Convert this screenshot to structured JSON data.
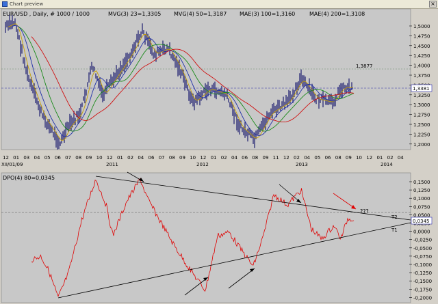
{
  "window": {
    "title": "Chart preview",
    "close_label": "×"
  },
  "price_chart": {
    "symbol": "EUR/USD",
    "timeframe": "Daily",
    "scale_info": "# 1000 / 1000",
    "indicators": [
      {
        "text": "MVG(3) 23=1,3305",
        "color": "#c8a000"
      },
      {
        "text": "MVG(4) 50=1,3187",
        "color": "#1e2ea8"
      },
      {
        "text": "MAE(3) 100=1,3160",
        "color": "#1a8a1a"
      },
      {
        "text": "MAE(4) 200=1,3108",
        "color": "#d01010"
      }
    ],
    "level_label": "1,3877",
    "current_price": "1,3381",
    "y_ticks": [
      "1,5000",
      "1,4750",
      "1,4500",
      "1,4250",
      "1,4000",
      "1,3750",
      "1,3500",
      "1,3250",
      "1,3000",
      "1,2750",
      "1,2500",
      "1,2250",
      "1,2000"
    ],
    "x_ticks": [
      "12",
      "01",
      "03",
      "04",
      "05",
      "06",
      "07",
      "08",
      "09",
      "10",
      "12",
      "01",
      "02",
      "04",
      "06",
      "07",
      "08",
      "09",
      "10",
      "12",
      "01",
      "02",
      "04",
      "06",
      "08",
      "09",
      "11",
      "12",
      "02",
      "04",
      "05",
      "06",
      "08",
      "09",
      "10",
      "12",
      "01",
      "02",
      "04"
    ],
    "years": [
      "XII/01/09",
      "2011",
      "2012",
      "2013",
      "2014"
    ]
  },
  "dpo_chart": {
    "title": "DPO(4) 80=0,0345",
    "current_value": "0,0345",
    "y_ticks": [
      "0,1500",
      "0,1250",
      "0,1000",
      "0,0750",
      "0,0500",
      "0,0250",
      "0,0000",
      "-0,0250",
      "-0,0500",
      "-0,0750",
      "-0,1000",
      "-0,1250",
      "-0,1500",
      "-0,1750",
      "-0,2000"
    ],
    "annotation": "???",
    "line_labels": [
      "T2",
      "T1"
    ]
  },
  "colors": {
    "chart_bg": "#c8c8c8",
    "candles": "#1a1a6e",
    "dpo_line": "#e00000",
    "trend_lines": "#000000",
    "arrow_red": "#e00000",
    "current_price_box": "#ffffff"
  }
}
